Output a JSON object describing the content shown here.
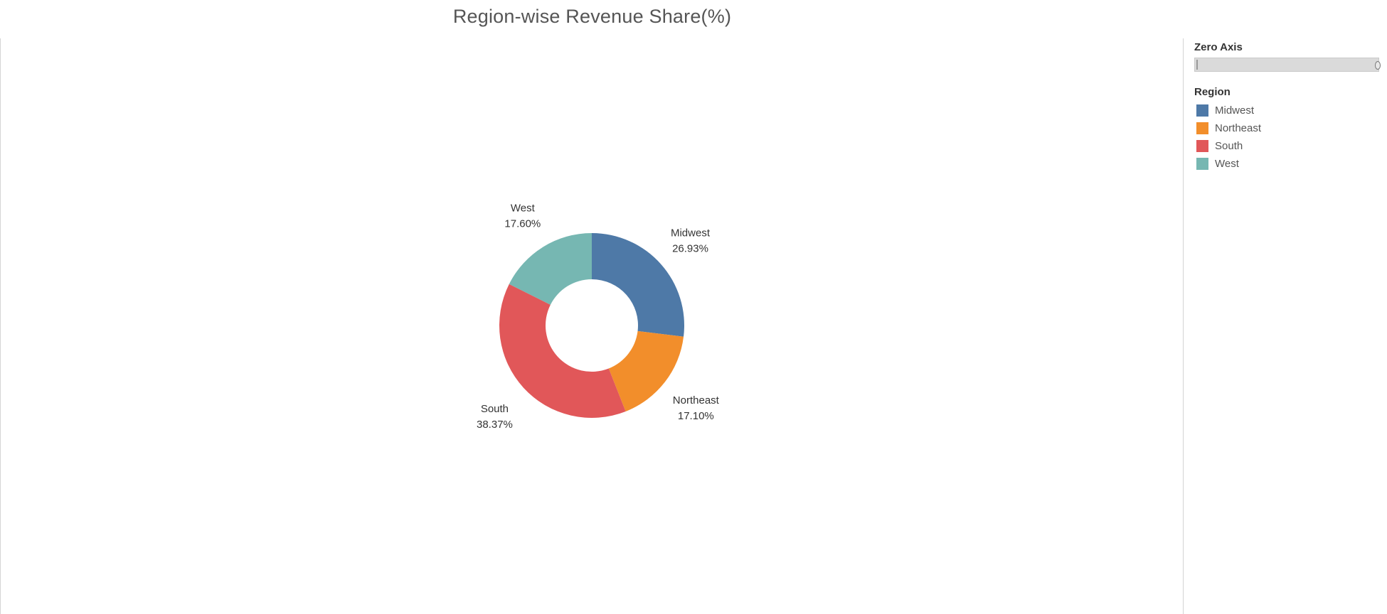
{
  "chart_data": {
    "type": "pie",
    "style": "donut",
    "title": "Region-wise Revenue Share(%)",
    "slices": [
      {
        "label": "Midwest",
        "value": 26.93,
        "display": "26.93%",
        "color": "#4e79a7"
      },
      {
        "label": "Northeast",
        "value": 17.1,
        "display": "17.10%",
        "color": "#f28e2b"
      },
      {
        "label": "South",
        "value": 38.37,
        "display": "38.37%",
        "color": "#e15759"
      },
      {
        "label": "West",
        "value": 17.6,
        "display": "17.60%",
        "color": "#76b7b2"
      }
    ],
    "legend_position": "right"
  },
  "filters": {
    "zero_axis": {
      "label": "Zero Axis"
    }
  },
  "legend": {
    "title": "Region",
    "items": [
      {
        "label": "Midwest",
        "color": "#4e79a7"
      },
      {
        "label": "Northeast",
        "color": "#f28e2b"
      },
      {
        "label": "South",
        "color": "#e15759"
      },
      {
        "label": "West",
        "color": "#76b7b2"
      }
    ]
  }
}
